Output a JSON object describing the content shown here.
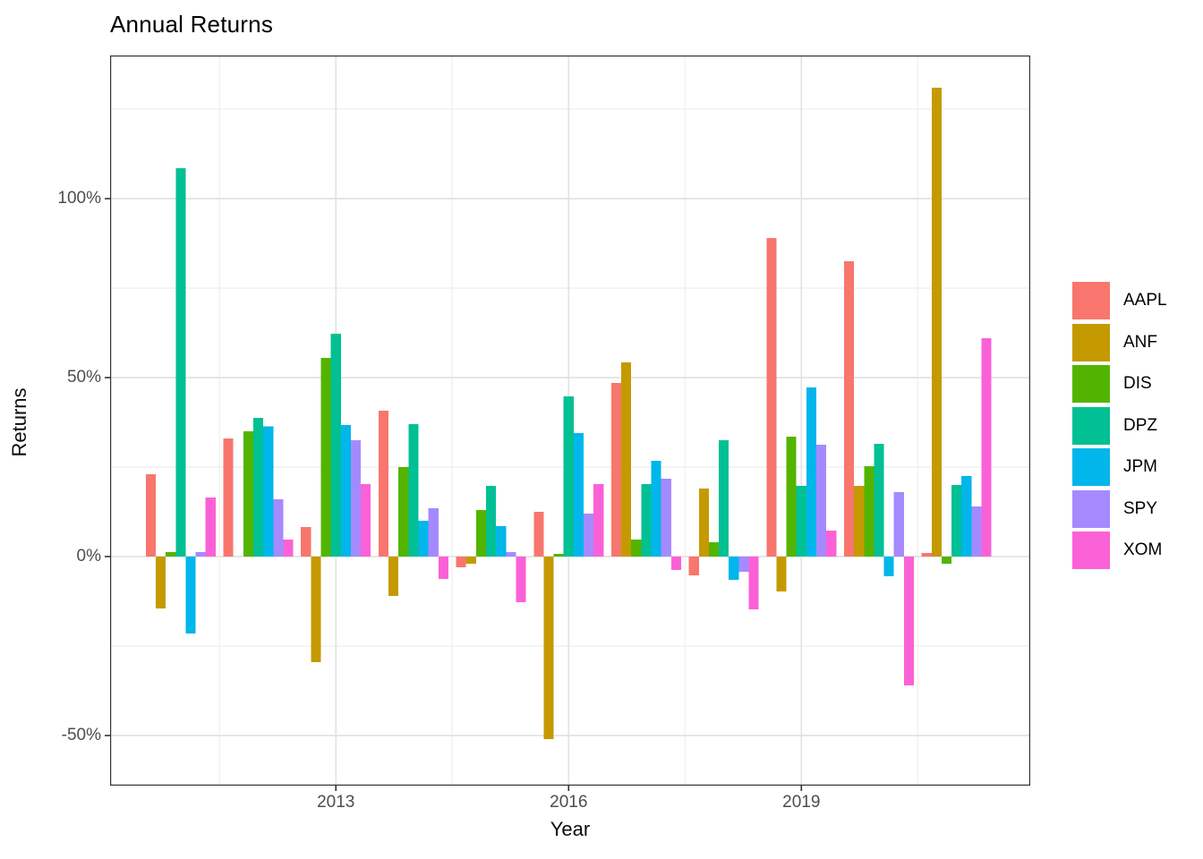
{
  "chart_data": {
    "type": "bar",
    "title": "Annual Returns",
    "xlabel": "Year",
    "ylabel": "Returns",
    "categories": [
      2011,
      2012,
      2013,
      2014,
      2015,
      2016,
      2017,
      2018,
      2019,
      2020,
      2021
    ],
    "series": [
      {
        "name": "AAPL",
        "color": "#F8766D",
        "values": [
          23,
          33,
          8.3,
          40.8,
          -3,
          12.5,
          48.5,
          -5.3,
          89,
          82.5,
          1
        ]
      },
      {
        "name": "ANF",
        "color": "#C49A00",
        "values": [
          -14.5,
          0,
          -29.5,
          -11,
          -2,
          -51,
          54.3,
          19,
          -9.8,
          19.8,
          131
        ]
      },
      {
        "name": "DIS",
        "color": "#53B400",
        "values": [
          1.2,
          35,
          55.5,
          25,
          13,
          0.8,
          4.8,
          4,
          33.5,
          25.3,
          -2
        ]
      },
      {
        "name": "DPZ",
        "color": "#00C094",
        "values": [
          108.5,
          38.8,
          62.3,
          37,
          19.8,
          44.8,
          20.3,
          32.5,
          19.8,
          31.5,
          20
        ]
      },
      {
        "name": "JPM",
        "color": "#00B6EB",
        "values": [
          -21.5,
          36.4,
          36.8,
          10,
          8.5,
          34.5,
          26.8,
          -6.5,
          47.3,
          -5.5,
          22.5
        ]
      },
      {
        "name": "SPY",
        "color": "#A58AFF",
        "values": [
          1.2,
          16,
          32.5,
          13.5,
          1.2,
          12,
          21.8,
          -4.3,
          31.3,
          18,
          14
        ]
      },
      {
        "name": "XOM",
        "color": "#FB61D7",
        "values": [
          16.5,
          4.8,
          20.3,
          -6.2,
          -12.8,
          20.2,
          -3.8,
          -14.8,
          7.3,
          -36,
          61
        ]
      }
    ],
    "x_ticks": [
      {
        "value": 2013,
        "label": "2013"
      },
      {
        "value": 2016,
        "label": "2016"
      },
      {
        "value": 2019,
        "label": "2019"
      }
    ],
    "y_ticks": [
      {
        "value": -50,
        "label": "-50%"
      },
      {
        "value": 0,
        "label": "0%"
      },
      {
        "value": 50,
        "label": "50%"
      },
      {
        "value": 100,
        "label": "100%"
      }
    ],
    "x_minor": [
      2011.5,
      2014.5,
      2017.5,
      2020.5
    ],
    "y_minor": [
      -25,
      25,
      75,
      125
    ],
    "xlim": [
      2010.09,
      2021.95
    ],
    "ylim": [
      -64,
      140
    ],
    "bar_group_width": 0.9,
    "grid": true,
    "legend_position": "right"
  },
  "colors": {
    "background": "#FFFFFF",
    "panel_border": "#333333",
    "major_grid": "#E3E3E3",
    "minor_grid": "#F1F1F1",
    "tick_mark": "#333333",
    "tick_text": "#4D4D4D",
    "axis_title": "#0D0D0D",
    "title_text": "#000000"
  }
}
